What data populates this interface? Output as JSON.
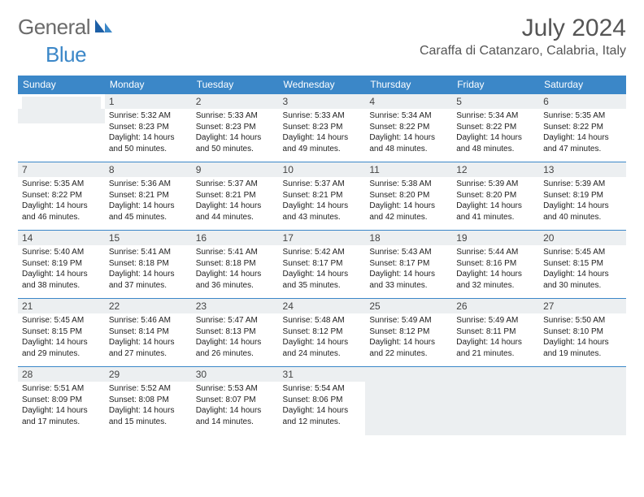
{
  "logo": {
    "textA": "General",
    "textB": "Blue"
  },
  "title": "July 2024",
  "location": "Caraffa di Catanzaro, Calabria, Italy",
  "colors": {
    "header_bg": "#3b87c8",
    "header_fg": "#ffffff",
    "row_border": "#3b87c8",
    "shaded_bg": "#eceff1",
    "body_bg": "#ffffff",
    "text": "#333333",
    "logo_gray": "#6b6b6b",
    "logo_blue": "#3b87c8"
  },
  "typography": {
    "title_fontsize": 30,
    "location_fontsize": 16,
    "dayheader_fontsize": 12,
    "daynum_fontsize": 12,
    "body_fontsize": 10
  },
  "dayHeaders": [
    "Sunday",
    "Monday",
    "Tuesday",
    "Wednesday",
    "Thursday",
    "Friday",
    "Saturday"
  ],
  "weeks": [
    [
      {
        "n": "",
        "sunrise": "",
        "sunset": "",
        "daylight": "",
        "shaded": true
      },
      {
        "n": "1",
        "sunrise": "Sunrise: 5:32 AM",
        "sunset": "Sunset: 8:23 PM",
        "daylight": "Daylight: 14 hours and 50 minutes."
      },
      {
        "n": "2",
        "sunrise": "Sunrise: 5:33 AM",
        "sunset": "Sunset: 8:23 PM",
        "daylight": "Daylight: 14 hours and 50 minutes."
      },
      {
        "n": "3",
        "sunrise": "Sunrise: 5:33 AM",
        "sunset": "Sunset: 8:23 PM",
        "daylight": "Daylight: 14 hours and 49 minutes."
      },
      {
        "n": "4",
        "sunrise": "Sunrise: 5:34 AM",
        "sunset": "Sunset: 8:22 PM",
        "daylight": "Daylight: 14 hours and 48 minutes."
      },
      {
        "n": "5",
        "sunrise": "Sunrise: 5:34 AM",
        "sunset": "Sunset: 8:22 PM",
        "daylight": "Daylight: 14 hours and 48 minutes."
      },
      {
        "n": "6",
        "sunrise": "Sunrise: 5:35 AM",
        "sunset": "Sunset: 8:22 PM",
        "daylight": "Daylight: 14 hours and 47 minutes."
      }
    ],
    [
      {
        "n": "7",
        "sunrise": "Sunrise: 5:35 AM",
        "sunset": "Sunset: 8:22 PM",
        "daylight": "Daylight: 14 hours and 46 minutes."
      },
      {
        "n": "8",
        "sunrise": "Sunrise: 5:36 AM",
        "sunset": "Sunset: 8:21 PM",
        "daylight": "Daylight: 14 hours and 45 minutes."
      },
      {
        "n": "9",
        "sunrise": "Sunrise: 5:37 AM",
        "sunset": "Sunset: 8:21 PM",
        "daylight": "Daylight: 14 hours and 44 minutes."
      },
      {
        "n": "10",
        "sunrise": "Sunrise: 5:37 AM",
        "sunset": "Sunset: 8:21 PM",
        "daylight": "Daylight: 14 hours and 43 minutes."
      },
      {
        "n": "11",
        "sunrise": "Sunrise: 5:38 AM",
        "sunset": "Sunset: 8:20 PM",
        "daylight": "Daylight: 14 hours and 42 minutes."
      },
      {
        "n": "12",
        "sunrise": "Sunrise: 5:39 AM",
        "sunset": "Sunset: 8:20 PM",
        "daylight": "Daylight: 14 hours and 41 minutes."
      },
      {
        "n": "13",
        "sunrise": "Sunrise: 5:39 AM",
        "sunset": "Sunset: 8:19 PM",
        "daylight": "Daylight: 14 hours and 40 minutes."
      }
    ],
    [
      {
        "n": "14",
        "sunrise": "Sunrise: 5:40 AM",
        "sunset": "Sunset: 8:19 PM",
        "daylight": "Daylight: 14 hours and 38 minutes."
      },
      {
        "n": "15",
        "sunrise": "Sunrise: 5:41 AM",
        "sunset": "Sunset: 8:18 PM",
        "daylight": "Daylight: 14 hours and 37 minutes."
      },
      {
        "n": "16",
        "sunrise": "Sunrise: 5:41 AM",
        "sunset": "Sunset: 8:18 PM",
        "daylight": "Daylight: 14 hours and 36 minutes."
      },
      {
        "n": "17",
        "sunrise": "Sunrise: 5:42 AM",
        "sunset": "Sunset: 8:17 PM",
        "daylight": "Daylight: 14 hours and 35 minutes."
      },
      {
        "n": "18",
        "sunrise": "Sunrise: 5:43 AM",
        "sunset": "Sunset: 8:17 PM",
        "daylight": "Daylight: 14 hours and 33 minutes."
      },
      {
        "n": "19",
        "sunrise": "Sunrise: 5:44 AM",
        "sunset": "Sunset: 8:16 PM",
        "daylight": "Daylight: 14 hours and 32 minutes."
      },
      {
        "n": "20",
        "sunrise": "Sunrise: 5:45 AM",
        "sunset": "Sunset: 8:15 PM",
        "daylight": "Daylight: 14 hours and 30 minutes."
      }
    ],
    [
      {
        "n": "21",
        "sunrise": "Sunrise: 5:45 AM",
        "sunset": "Sunset: 8:15 PM",
        "daylight": "Daylight: 14 hours and 29 minutes."
      },
      {
        "n": "22",
        "sunrise": "Sunrise: 5:46 AM",
        "sunset": "Sunset: 8:14 PM",
        "daylight": "Daylight: 14 hours and 27 minutes."
      },
      {
        "n": "23",
        "sunrise": "Sunrise: 5:47 AM",
        "sunset": "Sunset: 8:13 PM",
        "daylight": "Daylight: 14 hours and 26 minutes."
      },
      {
        "n": "24",
        "sunrise": "Sunrise: 5:48 AM",
        "sunset": "Sunset: 8:12 PM",
        "daylight": "Daylight: 14 hours and 24 minutes."
      },
      {
        "n": "25",
        "sunrise": "Sunrise: 5:49 AM",
        "sunset": "Sunset: 8:12 PM",
        "daylight": "Daylight: 14 hours and 22 minutes."
      },
      {
        "n": "26",
        "sunrise": "Sunrise: 5:49 AM",
        "sunset": "Sunset: 8:11 PM",
        "daylight": "Daylight: 14 hours and 21 minutes."
      },
      {
        "n": "27",
        "sunrise": "Sunrise: 5:50 AM",
        "sunset": "Sunset: 8:10 PM",
        "daylight": "Daylight: 14 hours and 19 minutes."
      }
    ],
    [
      {
        "n": "28",
        "sunrise": "Sunrise: 5:51 AM",
        "sunset": "Sunset: 8:09 PM",
        "daylight": "Daylight: 14 hours and 17 minutes."
      },
      {
        "n": "29",
        "sunrise": "Sunrise: 5:52 AM",
        "sunset": "Sunset: 8:08 PM",
        "daylight": "Daylight: 14 hours and 15 minutes."
      },
      {
        "n": "30",
        "sunrise": "Sunrise: 5:53 AM",
        "sunset": "Sunset: 8:07 PM",
        "daylight": "Daylight: 14 hours and 14 minutes."
      },
      {
        "n": "31",
        "sunrise": "Sunrise: 5:54 AM",
        "sunset": "Sunset: 8:06 PM",
        "daylight": "Daylight: 14 hours and 12 minutes."
      },
      {
        "n": "",
        "sunrise": "",
        "sunset": "",
        "daylight": "",
        "shaded": true
      },
      {
        "n": "",
        "sunrise": "",
        "sunset": "",
        "daylight": "",
        "shaded": true
      },
      {
        "n": "",
        "sunrise": "",
        "sunset": "",
        "daylight": "",
        "shaded": true
      }
    ]
  ]
}
